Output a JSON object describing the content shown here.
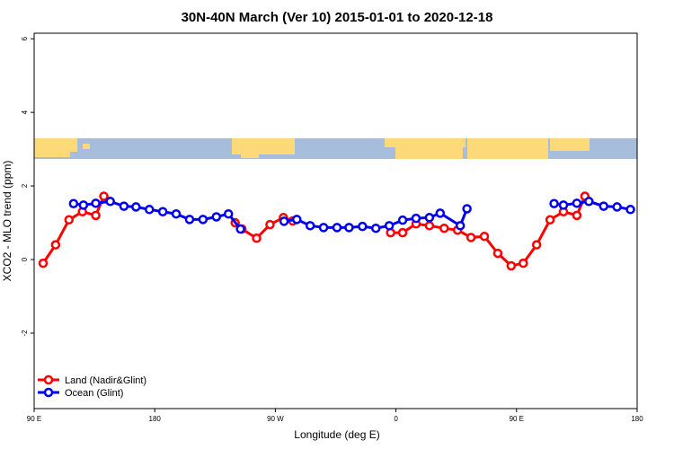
{
  "chart_data": {
    "type": "line",
    "title": "30N-40N March (Ver 10)   2015-01-01 to 2020-12-18",
    "x_label": "Longitude (deg E)",
    "y_label": "XCO2 - MLO trend (ppm)",
    "xlim": [
      90,
      540
    ],
    "ylim": [
      -4.05,
      6.15
    ],
    "xticks": [
      {
        "value": 90,
        "label": "90 E"
      },
      180,
      {
        "value": 270,
        "label": "90 W"
      },
      {
        "value": 360,
        "label": "0"
      },
      {
        "value": 450,
        "label": "90 E"
      },
      {
        "value": 540,
        "label": "180"
      }
    ],
    "yticks": [
      -2,
      0,
      2,
      4,
      6
    ],
    "legend": "bottom-left",
    "series": [
      {
        "name": "Land (Nadir&Glint)",
        "color": "#ff0000",
        "x": [
          96.7,
          106,
          116,
          126,
          136,
          142,
          190,
          240,
          245,
          256,
          266,
          276,
          283,
          320,
          356,
          365,
          375,
          385,
          396,
          406,
          416,
          426,
          436,
          446,
          455,
          465,
          475,
          485,
          495,
          501
        ],
        "values": [
          -0.1,
          0.4,
          1.08,
          1.3,
          1.2,
          1.72,
          null,
          1.0,
          0.83,
          0.58,
          0.95,
          1.14,
          1.05,
          null,
          0.73,
          0.73,
          0.97,
          0.92,
          0.85,
          0.8,
          0.6,
          0.63,
          0.17,
          -0.17,
          -0.1,
          0.4,
          1.08,
          1.3,
          1.2,
          1.72
        ]
      },
      {
        "name": "Ocean (Glint)",
        "color": "#0000ee",
        "x": [
          119.4,
          126.8,
          136,
          146.8,
          157,
          166,
          176,
          186,
          196,
          206,
          216,
          226,
          235,
          244,
          260,
          276.5,
          286,
          296,
          306,
          316,
          325,
          335,
          345,
          355,
          365,
          375,
          385,
          393,
          408,
          413,
          445,
          478,
          485,
          495,
          504,
          515,
          525,
          535
        ],
        "values": [
          1.52,
          1.48,
          1.53,
          1.58,
          1.45,
          1.43,
          1.36,
          1.3,
          1.24,
          1.09,
          1.09,
          1.16,
          1.24,
          0.83,
          null,
          1.04,
          1.09,
          0.92,
          0.87,
          0.87,
          0.87,
          0.9,
          0.85,
          0.92,
          1.07,
          1.12,
          1.14,
          1.26,
          0.92,
          1.38,
          null,
          1.52,
          1.48,
          1.53,
          1.58,
          1.45,
          1.43,
          1.36
        ]
      }
    ]
  }
}
